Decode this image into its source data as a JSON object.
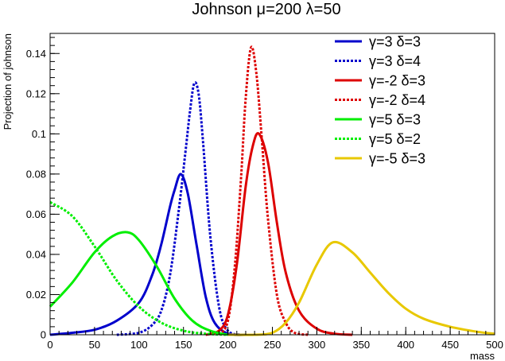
{
  "chart_data": {
    "type": "line",
    "title": "Johnson μ=200 λ=50",
    "xlabel": "mass",
    "ylabel": "Projection of johnson",
    "xlim": [
      0,
      500
    ],
    "ylim": [
      0,
      0.15
    ],
    "xticks": [
      0,
      50,
      100,
      150,
      200,
      250,
      300,
      350,
      400,
      450,
      500
    ],
    "yticks": [
      0,
      0.02,
      0.04,
      0.06,
      0.08,
      0.1,
      0.12,
      0.14
    ],
    "xtick_labels": [
      "0",
      "50",
      "100",
      "150",
      "200",
      "250",
      "300",
      "350",
      "400",
      "450",
      "500"
    ],
    "ytick_labels": [
      "0",
      "0.02",
      "0.04",
      "0.06",
      "0.08",
      "0.1",
      "0.12",
      "0.14"
    ],
    "grid": false,
    "legend_position": "top-right",
    "series": [
      {
        "name": "γ=3 δ=3",
        "color": "#0000cc",
        "dash": "solid",
        "x": [
          0,
          25,
          50,
          75,
          100,
          115,
          125,
          135,
          140,
          147,
          155,
          165,
          175,
          185,
          200,
          220
        ],
        "y": [
          0,
          0.001,
          0.0025,
          0.007,
          0.016,
          0.03,
          0.045,
          0.064,
          0.072,
          0.08,
          0.07,
          0.044,
          0.019,
          0.006,
          0.0005,
          0
        ]
      },
      {
        "name": "γ=3 δ=4",
        "color": "#0000cc",
        "dash": "dotted",
        "x": [
          75,
          100,
          115,
          125,
          135,
          145,
          152,
          157,
          162,
          167,
          172,
          180,
          190,
          200,
          215
        ],
        "y": [
          0,
          0.001,
          0.005,
          0.012,
          0.03,
          0.063,
          0.09,
          0.11,
          0.125,
          0.12,
          0.096,
          0.05,
          0.014,
          0.002,
          0
        ]
      },
      {
        "name": "γ=-2 δ=3",
        "color": "#dd0000",
        "dash": "solid",
        "x": [
          175,
          190,
          200,
          210,
          220,
          228,
          235,
          245,
          255,
          265,
          280,
          300,
          320,
          340
        ],
        "y": [
          0,
          0.002,
          0.01,
          0.035,
          0.074,
          0.094,
          0.1,
          0.086,
          0.056,
          0.031,
          0.012,
          0.003,
          0.0005,
          0
        ]
      },
      {
        "name": "γ=-2 δ=4",
        "color": "#dd0000",
        "dash": "dotted",
        "x": [
          190,
          200,
          208,
          215,
          220,
          226,
          232,
          238,
          245,
          255,
          265,
          275,
          290
        ],
        "y": [
          0,
          0.007,
          0.035,
          0.08,
          0.118,
          0.143,
          0.13,
          0.098,
          0.058,
          0.02,
          0.006,
          0.001,
          0
        ]
      },
      {
        "name": "γ=5 δ=3",
        "color": "#00ee00",
        "dash": "solid",
        "x": [
          0,
          25,
          50,
          70,
          87,
          100,
          120,
          140,
          160,
          180,
          200
        ],
        "y": [
          0.014,
          0.026,
          0.041,
          0.049,
          0.051,
          0.047,
          0.034,
          0.018,
          0.007,
          0.002,
          0
        ]
      },
      {
        "name": "γ=5 δ=2",
        "color": "#00ee00",
        "dash": "dotted",
        "x": [
          0,
          25,
          50,
          75,
          100,
          125,
          150,
          175,
          200
        ],
        "y": [
          0.066,
          0.059,
          0.044,
          0.027,
          0.014,
          0.006,
          0.002,
          0.0005,
          0
        ]
      },
      {
        "name": "γ=-5 δ=3",
        "color": "#e8c800",
        "dash": "solid",
        "x": [
          200,
          230,
          250,
          265,
          280,
          300,
          318,
          340,
          360,
          380,
          400,
          420,
          450,
          480,
          500
        ],
        "y": [
          0,
          0,
          0.001,
          0.006,
          0.016,
          0.035,
          0.046,
          0.041,
          0.031,
          0.021,
          0.013,
          0.008,
          0.004,
          0.0015,
          0.0005
        ]
      }
    ]
  }
}
